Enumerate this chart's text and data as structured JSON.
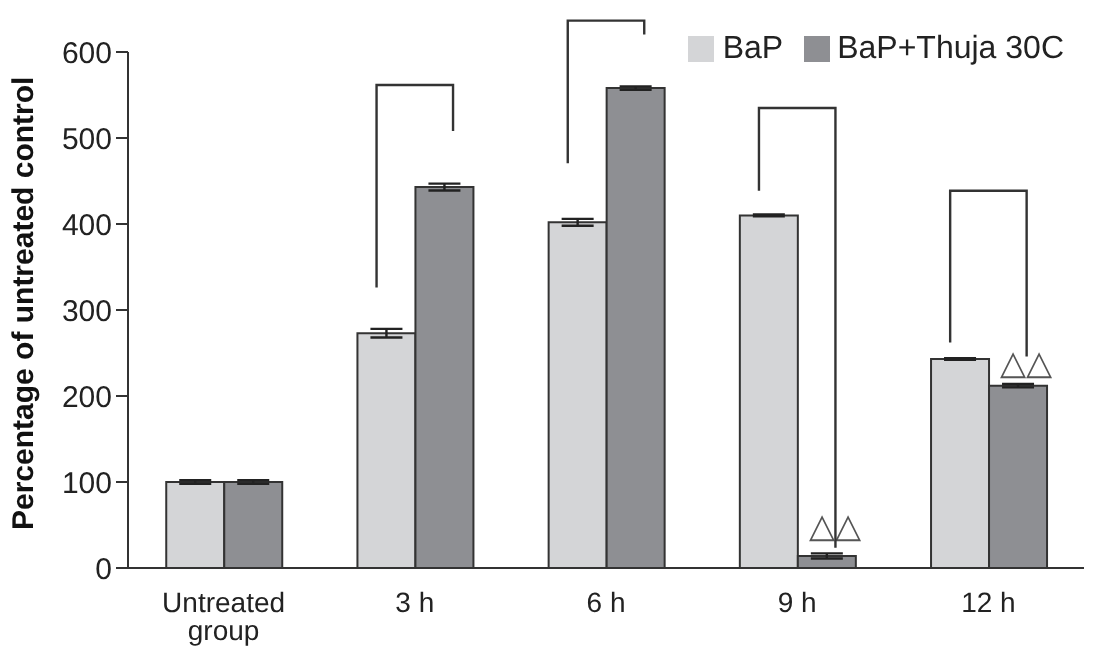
{
  "chart_data": {
    "type": "bar",
    "ylabel": "Percentage of untreated control",
    "categories": [
      "Untreated group",
      "3 h",
      "6 h",
      "9 h",
      "12 h"
    ],
    "series": [
      {
        "name": "BaP",
        "color": "#d4d5d7",
        "values": [
          100,
          273,
          402,
          410,
          243
        ],
        "errors": [
          2,
          5,
          4,
          1,
          1
        ]
      },
      {
        "name": "BaP+Thuja 30C",
        "color": "#8e8f93",
        "values": [
          100,
          443,
          558,
          14,
          212
        ],
        "errors": [
          2,
          4,
          2,
          3,
          2
        ]
      }
    ],
    "ylim": [
      0,
      600
    ],
    "yticks": [
      0,
      100,
      200,
      300,
      400,
      500,
      600
    ],
    "grid": false,
    "legend": "top right",
    "annotations": [
      {
        "text": "△△",
        "x": "9 h",
        "y": 50
      },
      {
        "text": "△△",
        "x": "12 h",
        "y": 240
      }
    ]
  }
}
